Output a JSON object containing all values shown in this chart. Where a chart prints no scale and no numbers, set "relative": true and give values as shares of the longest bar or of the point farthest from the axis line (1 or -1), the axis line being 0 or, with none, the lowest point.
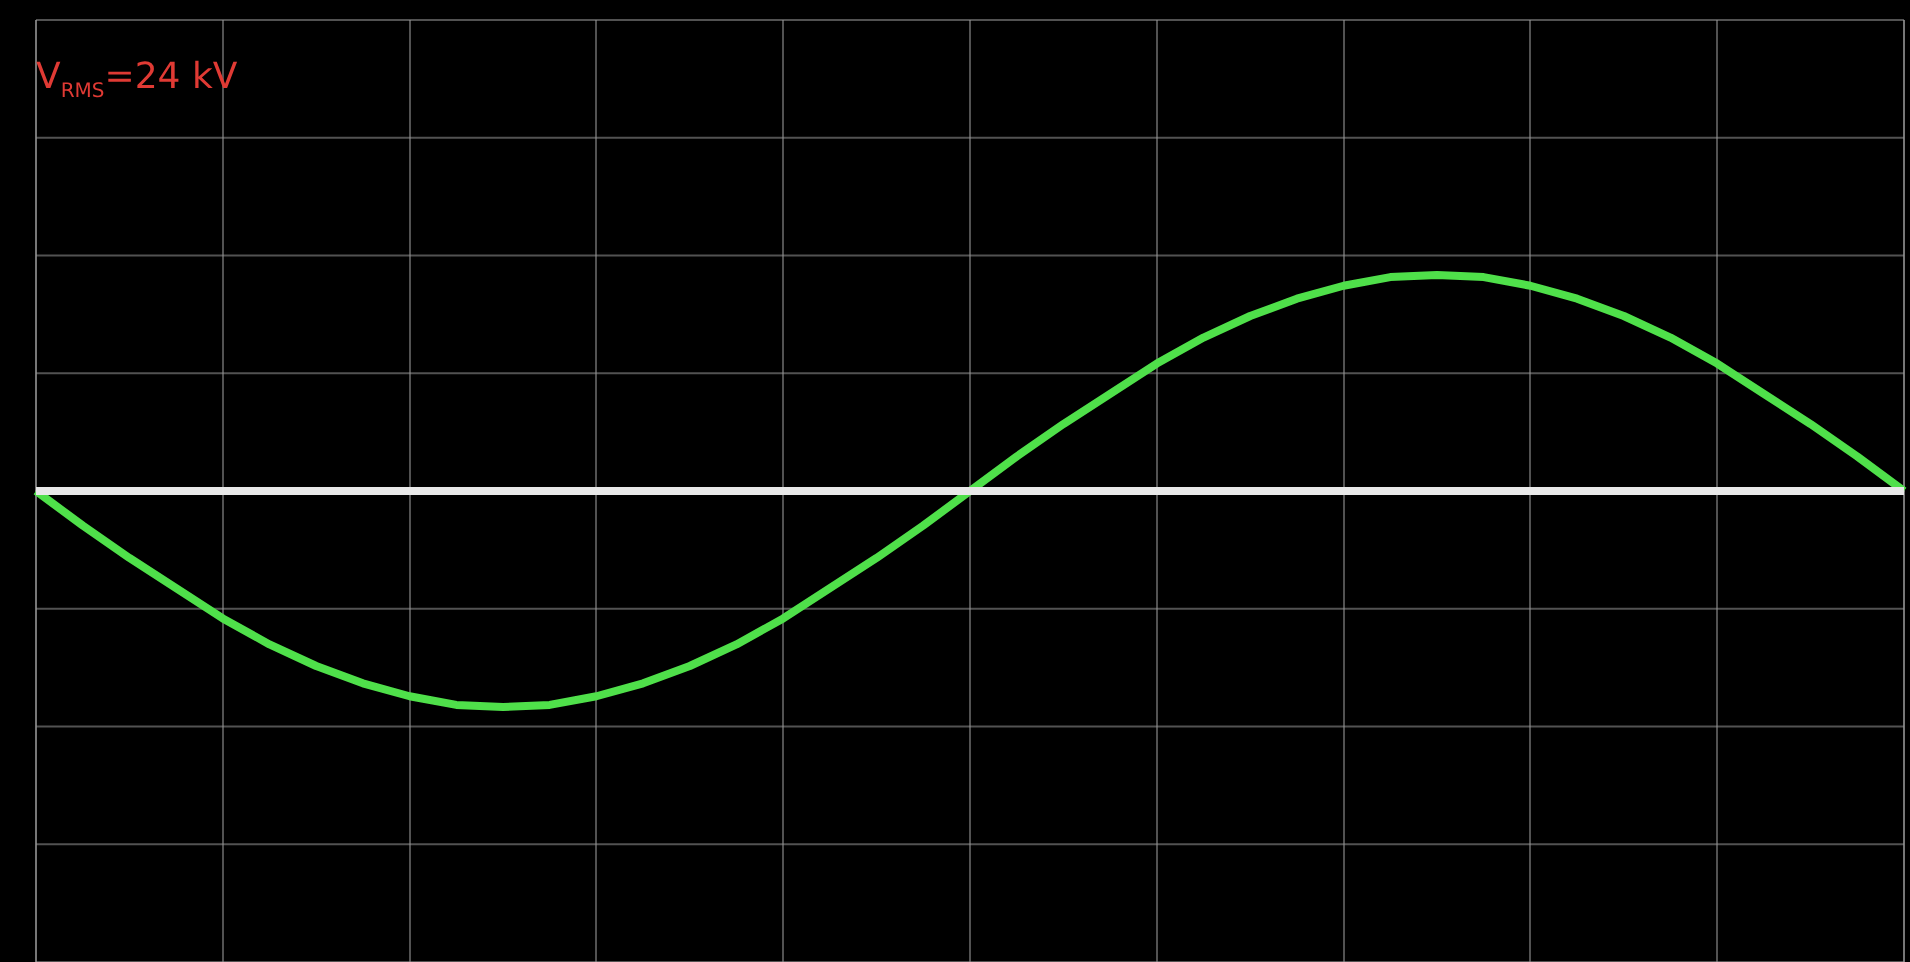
{
  "chart_data": {
    "type": "line",
    "relative": true,
    "grid": true,
    "legend": false,
    "marker": "none",
    "line_style": "solid",
    "annotations": [
      "V$_{RMS}$=24 kV"
    ],
    "categories": [
      null,
      null,
      null,
      null,
      null,
      null,
      null,
      null,
      null,
      null,
      null,
      null,
      null,
      null,
      null,
      null,
      null,
      null,
      null,
      null,
      null,
      null,
      null,
      null,
      null,
      null,
      null,
      null,
      null,
      null,
      null,
      null,
      null,
      null,
      null,
      null,
      null,
      null,
      null,
      null,
      null
    ],
    "series": [
      {
        "color": "#e8e8e8",
        "values": [
          0,
          0,
          0,
          0,
          0,
          0,
          0,
          0,
          0,
          0,
          0,
          0,
          0,
          0,
          0,
          0,
          0,
          0,
          0,
          0,
          0,
          0,
          0,
          0,
          0,
          0,
          0,
          0,
          0,
          0,
          0,
          0,
          0,
          0,
          0,
          0,
          0,
          0,
          0,
          0,
          0
        ]
      },
      {
        "color": "#4fe04a",
        "values": [
          0,
          -0.16,
          -0.31,
          -0.45,
          -0.59,
          -0.71,
          -0.81,
          -0.89,
          -0.95,
          -0.99,
          -1,
          -0.99,
          -0.95,
          -0.89,
          -0.81,
          -0.71,
          -0.59,
          -0.45,
          -0.31,
          -0.16,
          0,
          0.16,
          0.31,
          0.45,
          0.59,
          0.71,
          0.81,
          0.89,
          0.95,
          0.99,
          1,
          0.99,
          0.95,
          0.89,
          0.81,
          0.71,
          0.59,
          0.45,
          0.31,
          0.16,
          0
        ]
      }
    ]
  }
}
